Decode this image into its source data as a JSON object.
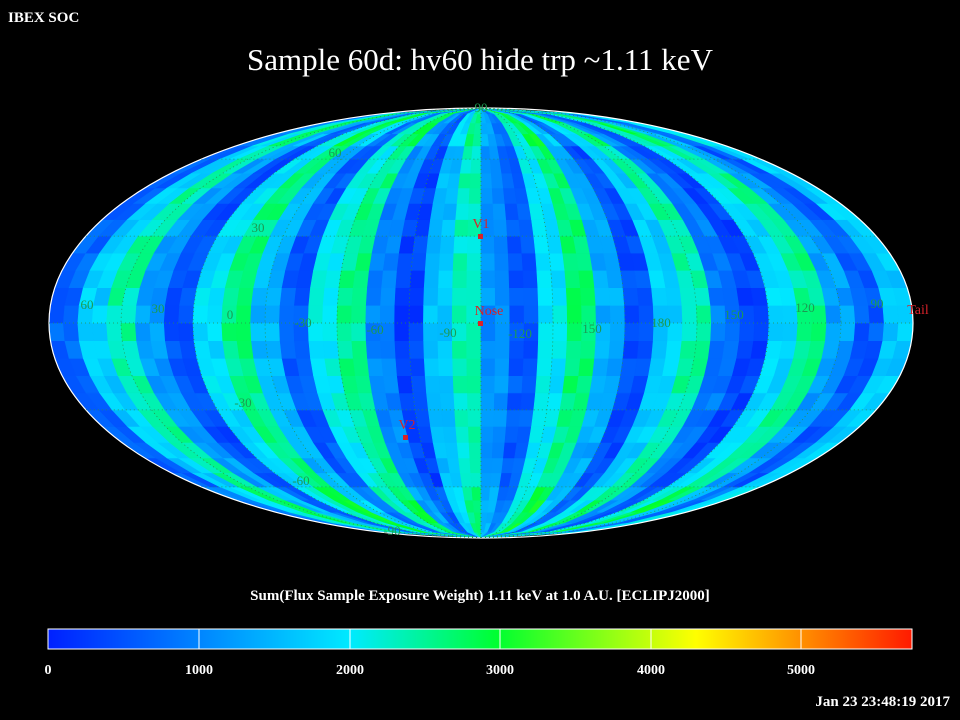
{
  "header": {
    "organization": "IBEX SOC",
    "title": "Sample 60d: hv60 hide trp ~1.11 keV",
    "map_label": "Sum(Flux Sample Exposure Weight)  1.11 keV at 1.0 A.U. [ECLIPJ2000]",
    "timestamp": "Jan 23 23:48:19 2017"
  },
  "map": {
    "projection": "mollweide",
    "coordinate_frame": "ECLIPJ2000",
    "grid_labels": [
      {
        "text": "90",
        "lon": 0,
        "lat": 90
      },
      {
        "text": "60",
        "lon": 0,
        "lat": 60
      },
      {
        "text": "30",
        "lon": 0,
        "lat": 30
      },
      {
        "text": "-30",
        "lon": 0,
        "lat": -30
      },
      {
        "text": "-60",
        "lon": 0,
        "lat": -60
      },
      {
        "text": "-90",
        "lon": 0,
        "lat": -90
      },
      {
        "text": "60",
        "lon": 0,
        "lat": 0
      },
      {
        "text": "30",
        "lon": 0,
        "lat": 0
      },
      {
        "text": "0",
        "lon": 0,
        "lat": 0
      },
      {
        "text": "-30",
        "lon": 0,
        "lat": 0
      },
      {
        "text": "-60",
        "lon": 0,
        "lat": 0
      },
      {
        "text": "-90",
        "lon": 0,
        "lat": 0
      },
      {
        "text": "-120",
        "lon": 0,
        "lat": 0
      },
      {
        "text": "150",
        "lon": 0,
        "lat": 0
      },
      {
        "text": "180",
        "lon": 0,
        "lat": 0
      },
      {
        "text": "150",
        "lon": 0,
        "lat": 0
      },
      {
        "text": "120",
        "lon": 0,
        "lat": 0
      },
      {
        "text": "90",
        "lon": 0,
        "lat": 0
      }
    ],
    "markers": [
      {
        "label": "V1"
      },
      {
        "label": "Nose"
      },
      {
        "label": "V2"
      },
      {
        "label": "Tail"
      }
    ]
  },
  "colorbar": {
    "ticks": [
      "0",
      "1000",
      "2000",
      "3000",
      "4000",
      "5000"
    ],
    "min": 0,
    "max": 5700,
    "colors": [
      "#0020ff",
      "#00eaff",
      "#00ff30",
      "#ffff00",
      "#ff1a00"
    ]
  }
}
